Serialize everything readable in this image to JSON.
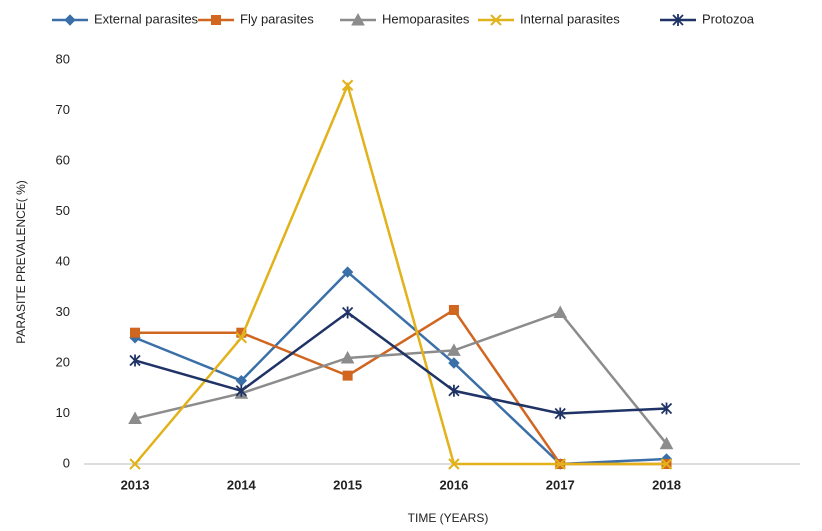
{
  "chart_data": {
    "type": "line",
    "x_label": "TIME (YEARS)",
    "y_label": "PARASITE PREVALENCE( %)",
    "categories": [
      "2013",
      "2014",
      "2015",
      "2016",
      "2017",
      "2018"
    ],
    "series": [
      {
        "name": "External parasites",
        "color": "#3a6fa8",
        "marker": "diamond",
        "values": [
          25,
          16.5,
          38,
          20,
          0,
          1
        ]
      },
      {
        "name": "Fly parasites",
        "color": "#d0661f",
        "marker": "square",
        "values": [
          26,
          26,
          17.5,
          30.5,
          0,
          0
        ]
      },
      {
        "name": "Hemoparasites",
        "color": "#8c8c8c",
        "marker": "triangle",
        "values": [
          9,
          14,
          21,
          22.5,
          30,
          4
        ]
      },
      {
        "name": "Internal parasites",
        "color": "#e1b21a",
        "marker": "x",
        "values": [
          0,
          25,
          75,
          0,
          0,
          0
        ]
      },
      {
        "name": "Protozoa",
        "color": "#1f3366",
        "marker": "star",
        "values": [
          20.5,
          14.5,
          30,
          14.5,
          10,
          11
        ]
      }
    ],
    "ylim": [
      0,
      80
    ],
    "yticks": [
      0,
      10,
      20,
      30,
      40,
      50,
      60,
      70,
      80
    ],
    "grid": false,
    "legend": "top"
  }
}
